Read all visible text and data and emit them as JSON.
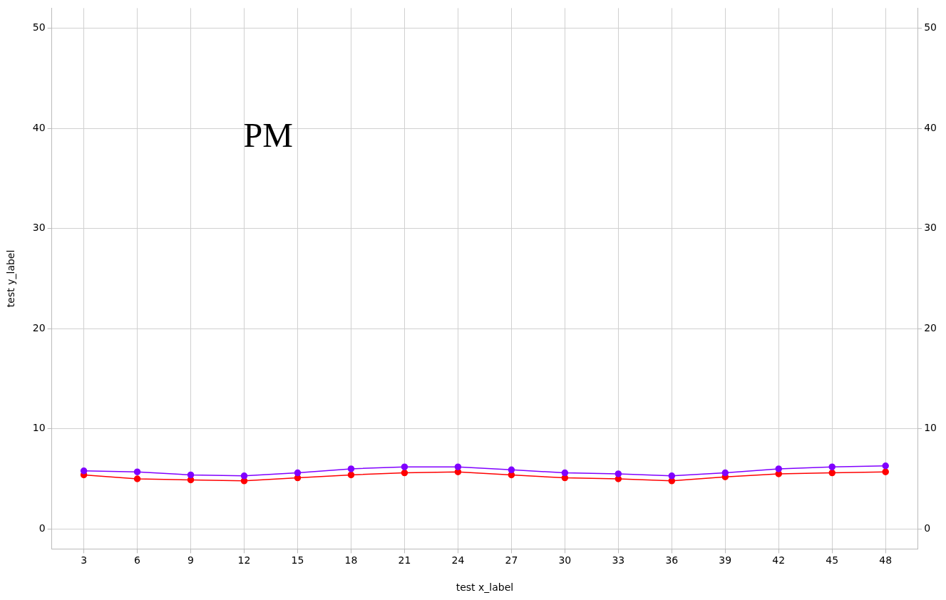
{
  "chart_data": {
    "type": "line",
    "xlabel": "test x_label",
    "ylabel": "test y_label",
    "annotations": [
      "PM"
    ],
    "x": [
      3,
      6,
      9,
      12,
      15,
      18,
      21,
      24,
      27,
      30,
      33,
      36,
      39,
      42,
      45,
      48
    ],
    "series": [
      {
        "color": "#8000ff",
        "values": [
          5.8,
          5.7,
          5.4,
          5.3,
          5.6,
          6.0,
          6.2,
          6.2,
          5.9,
          5.6,
          5.5,
          5.3,
          5.6,
          6.0,
          6.2,
          6.3
        ]
      },
      {
        "color": "#ff0000",
        "values": [
          5.4,
          5.0,
          4.9,
          4.8,
          5.1,
          5.4,
          5.6,
          5.7,
          5.4,
          5.1,
          5.0,
          4.8,
          5.2,
          5.5,
          5.6,
          5.7
        ]
      }
    ],
    "xlim": [
      1.2,
      49.8
    ],
    "xticks": [
      3,
      6,
      9,
      12,
      15,
      18,
      21,
      24,
      27,
      30,
      33,
      36,
      39,
      42,
      45,
      48
    ],
    "ylim": [
      -2,
      52
    ],
    "yticks": [
      0,
      10,
      20,
      30,
      40,
      50
    ],
    "y2lim": [
      -2,
      52
    ],
    "y2ticks": [
      0,
      10,
      20,
      30,
      40,
      50
    ],
    "grid": true,
    "legend": false,
    "marker": "circle",
    "line_style": "solid"
  }
}
